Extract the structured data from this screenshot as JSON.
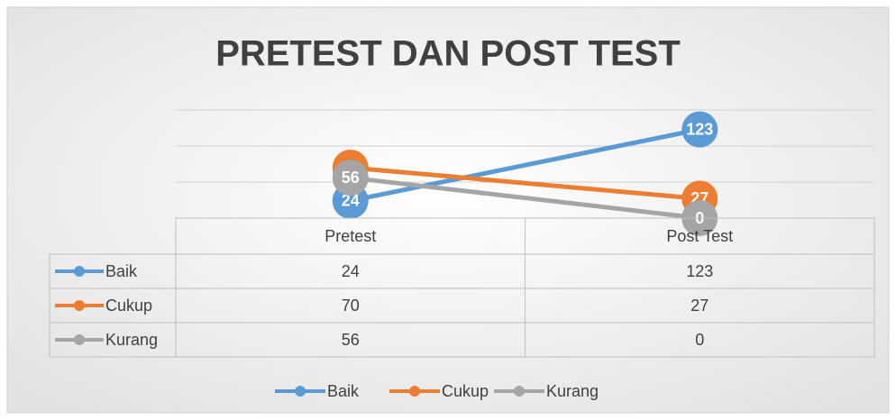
{
  "chart_data": {
    "type": "line",
    "title": "PRETEST DAN POST TEST",
    "categories": [
      "Pretest",
      "Post Test"
    ],
    "series": [
      {
        "name": "Baik",
        "color": "#5b9bd5",
        "values": [
          24,
          123
        ]
      },
      {
        "name": "Cukup",
        "color": "#ed7d31",
        "values": [
          70,
          27
        ]
      },
      {
        "name": "Kurang",
        "color": "#a5a5a5",
        "values": [
          56,
          0
        ]
      }
    ],
    "ylim": [
      0,
      150
    ],
    "yticks": [
      0,
      50,
      100,
      150
    ],
    "grid": true,
    "legend": "bottom",
    "data_table": true
  }
}
